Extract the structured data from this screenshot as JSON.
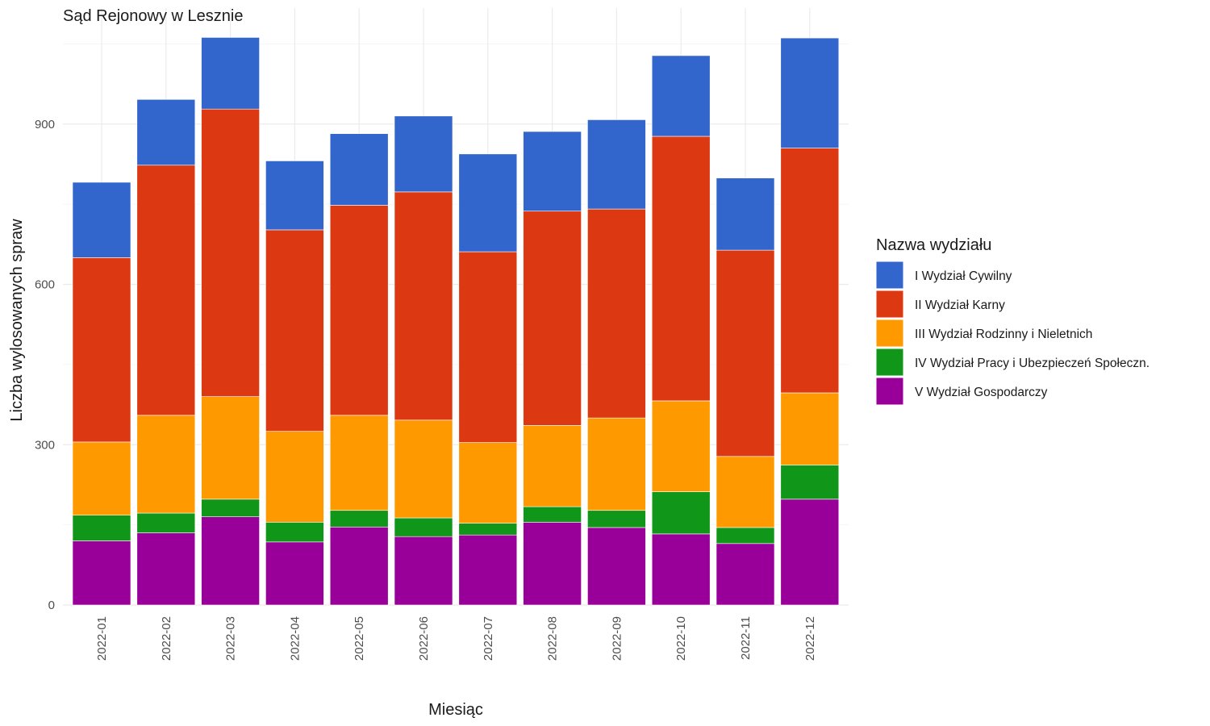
{
  "chart_data": {
    "type": "bar",
    "stacked": true,
    "title": "Sąd Rejonowy w Lesznie",
    "xlabel": "Miesiąc",
    "ylabel": "Liczba wylosowanych spraw",
    "ylim": [
      0,
      1100
    ],
    "yticks": [
      0,
      300,
      600,
      900
    ],
    "grid": true,
    "legend_position": "right",
    "legend_title": "Nazwa wydziału",
    "categories": [
      "2022-01",
      "2022-02",
      "2022-03",
      "2022-04",
      "2022-05",
      "2022-06",
      "2022-07",
      "2022-08",
      "2022-09",
      "2022-10",
      "2022-11",
      "2022-12"
    ],
    "series": [
      {
        "name": "V Wydział Gospodarczy",
        "color": "#990099",
        "values": [
          120,
          135,
          165,
          118,
          146,
          128,
          131,
          155,
          145,
          133,
          115,
          198
        ]
      },
      {
        "name": "IV Wydział Pracy i Ubezpieczeń Społeczn.",
        "color": "#109618",
        "values": [
          48,
          37,
          33,
          37,
          31,
          35,
          22,
          29,
          32,
          79,
          30,
          64
        ]
      },
      {
        "name": "III Wydział Rodzinny i Nieletnich",
        "color": "#FF9900",
        "values": [
          137,
          183,
          192,
          170,
          178,
          183,
          151,
          152,
          173,
          170,
          133,
          135
        ]
      },
      {
        "name": "II Wydział Karny",
        "color": "#DC3912",
        "values": [
          345,
          468,
          538,
          377,
          393,
          427,
          357,
          401,
          391,
          495,
          386,
          458
        ]
      },
      {
        "name": "I Wydział Cywilny",
        "color": "#3366CC",
        "values": [
          141,
          123,
          134,
          129,
          134,
          142,
          183,
          149,
          167,
          151,
          135,
          206
        ]
      }
    ]
  }
}
